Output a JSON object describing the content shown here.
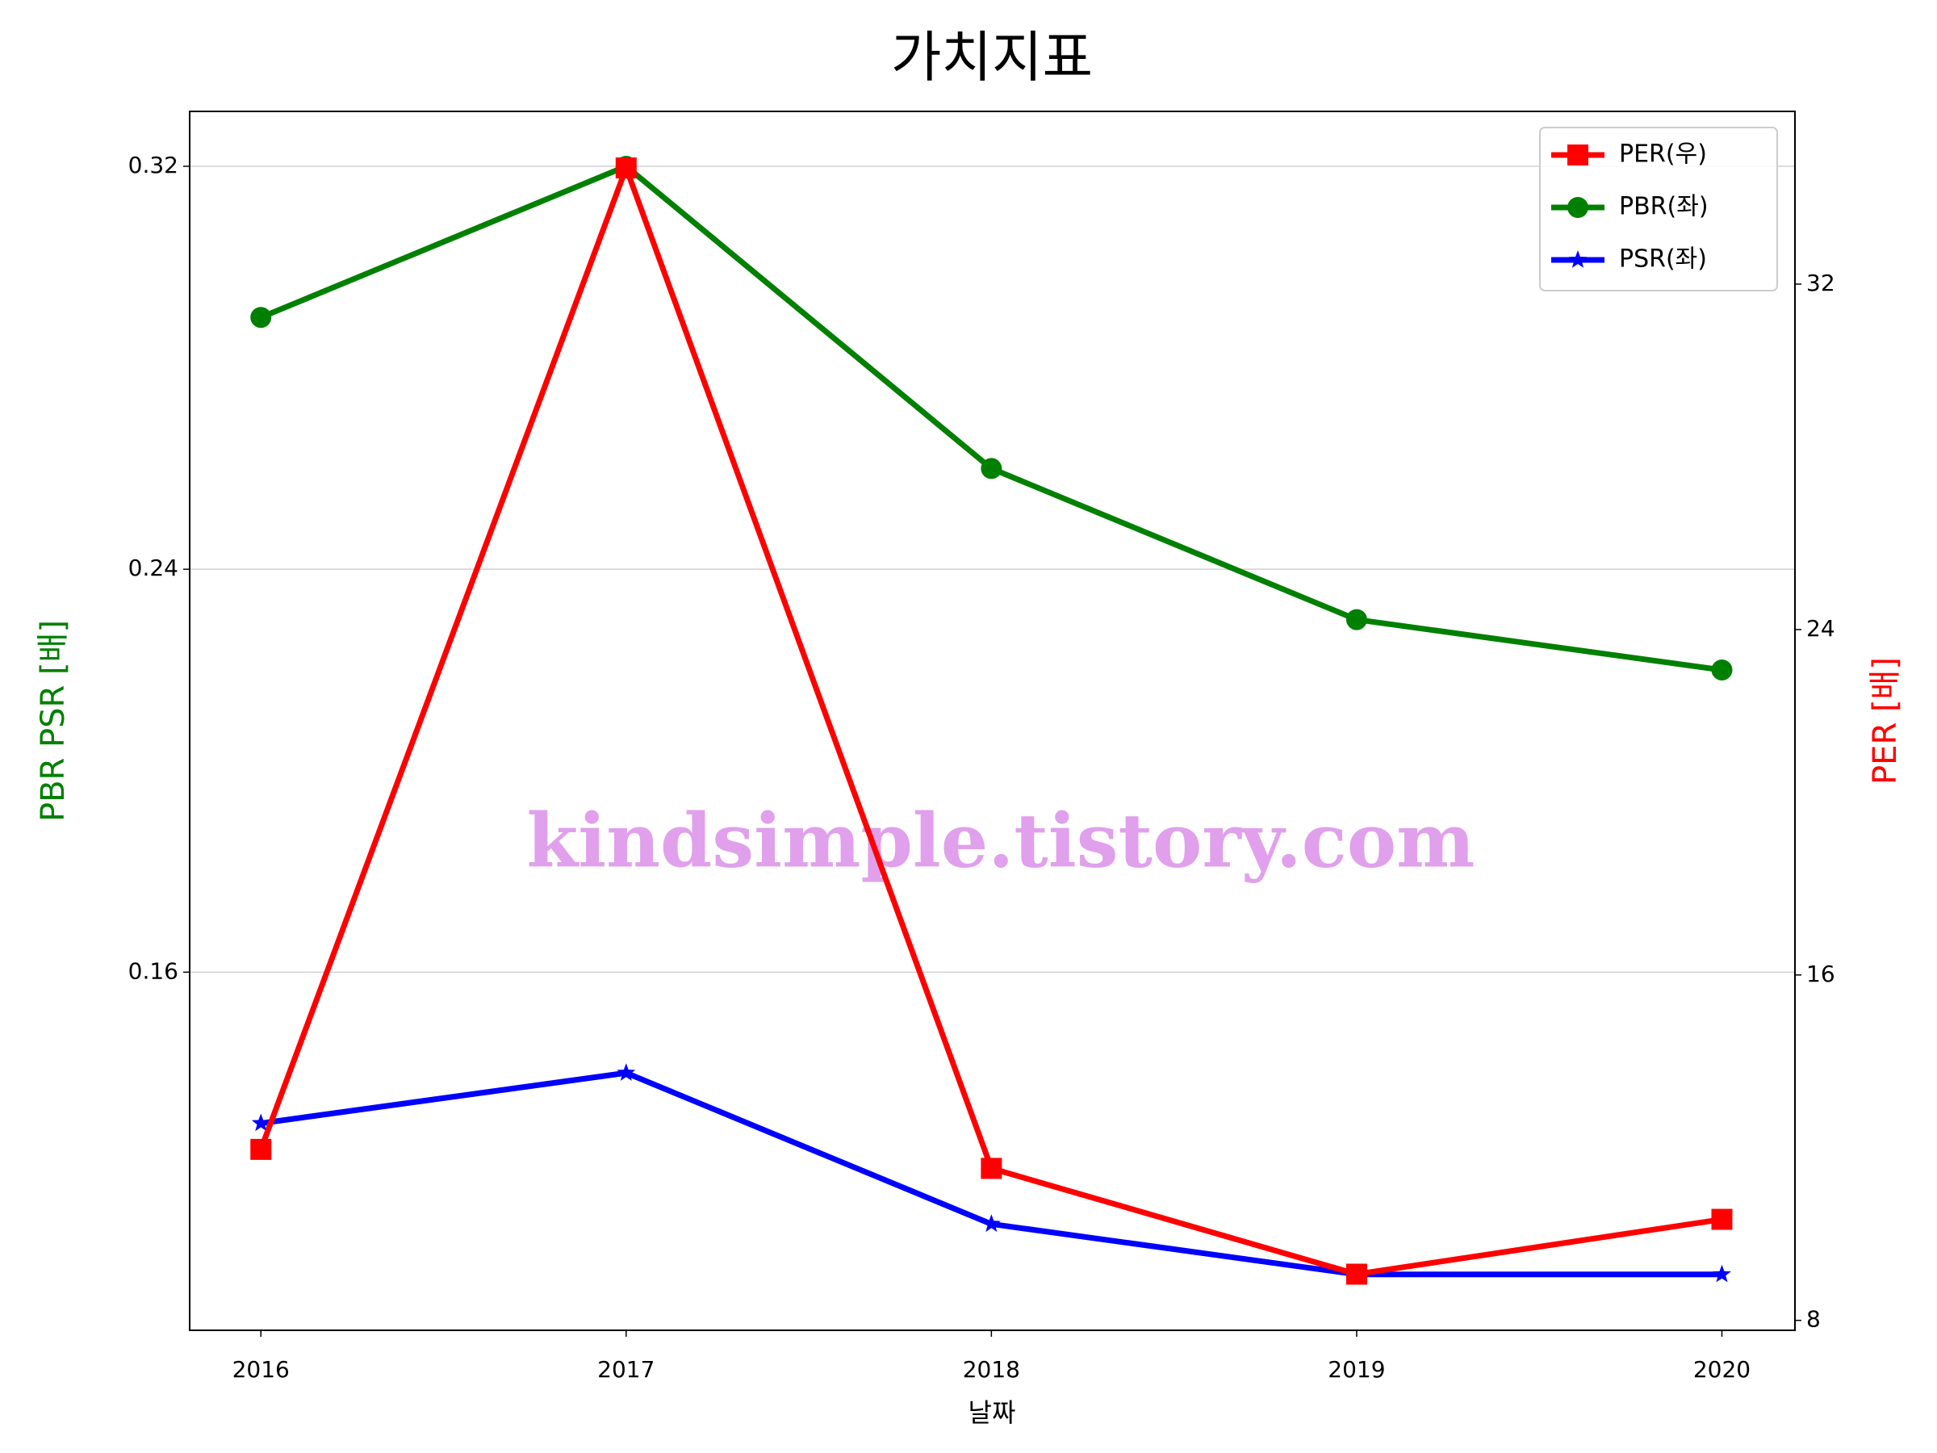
{
  "chart_data": {
    "type": "line",
    "title": "가치지표",
    "xlabel": "날짜",
    "ylabel": "PBR PSR [배]",
    "y2label": "PER [배]",
    "ylabel_color": "green",
    "y2label_color": "red",
    "watermark": "kindsimple.tistory.com",
    "x": [
      2016,
      2017,
      2018,
      2019,
      2020
    ],
    "xlim": [
      2015.805,
      2020.2
    ],
    "xticks": [
      2016,
      2017,
      2018,
      2019,
      2020
    ],
    "ylim": [
      0.0889,
      0.3309
    ],
    "yticks": [
      0.16,
      0.24,
      0.32
    ],
    "y2lim": [
      7.77,
      36
    ],
    "y2ticks": [
      8,
      16,
      24,
      32
    ],
    "grid": true,
    "legend": "upper right",
    "series": [
      {
        "name": "PER(우)",
        "color": "#ff0000",
        "marker": "square",
        "axis": "y2",
        "values": [
          11.96,
          34.69,
          11.52,
          9.07,
          10.34
        ]
      },
      {
        "name": "PBR(좌)",
        "color": "#008000",
        "marker": "circle",
        "values": [
          0.29,
          0.32,
          0.26,
          0.23,
          0.22
        ]
      },
      {
        "name": "PSR(좌)",
        "color": "#0000ff",
        "marker": "star",
        "values": [
          0.13,
          0.14,
          0.11,
          0.1,
          0.1
        ]
      }
    ]
  }
}
